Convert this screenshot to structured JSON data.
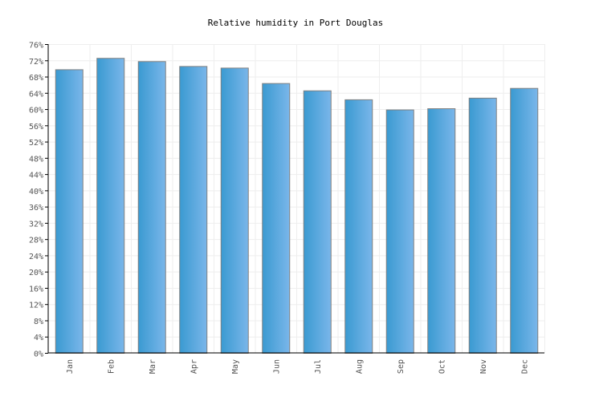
{
  "chart_data": {
    "type": "bar",
    "title": "Relative humidity in Port Douglas",
    "categories": [
      "Jan",
      "Feb",
      "Mar",
      "Apr",
      "May",
      "Jun",
      "Jul",
      "Aug",
      "Sep",
      "Oct",
      "Nov",
      "Dec"
    ],
    "values": [
      69.8,
      72.6,
      71.8,
      70.6,
      70.2,
      66.4,
      64.6,
      62.4,
      59.9,
      60.2,
      62.8,
      65.2
    ],
    "unit": "%",
    "ylim": [
      0,
      76
    ],
    "ytick_step": 4,
    "grid": true,
    "colors": {
      "bar_dark": "#3a9ad1",
      "bar_light": "#7ab6ea",
      "bar_border": "#808080",
      "grid": "#eeeeee",
      "axis": "#000000"
    }
  }
}
